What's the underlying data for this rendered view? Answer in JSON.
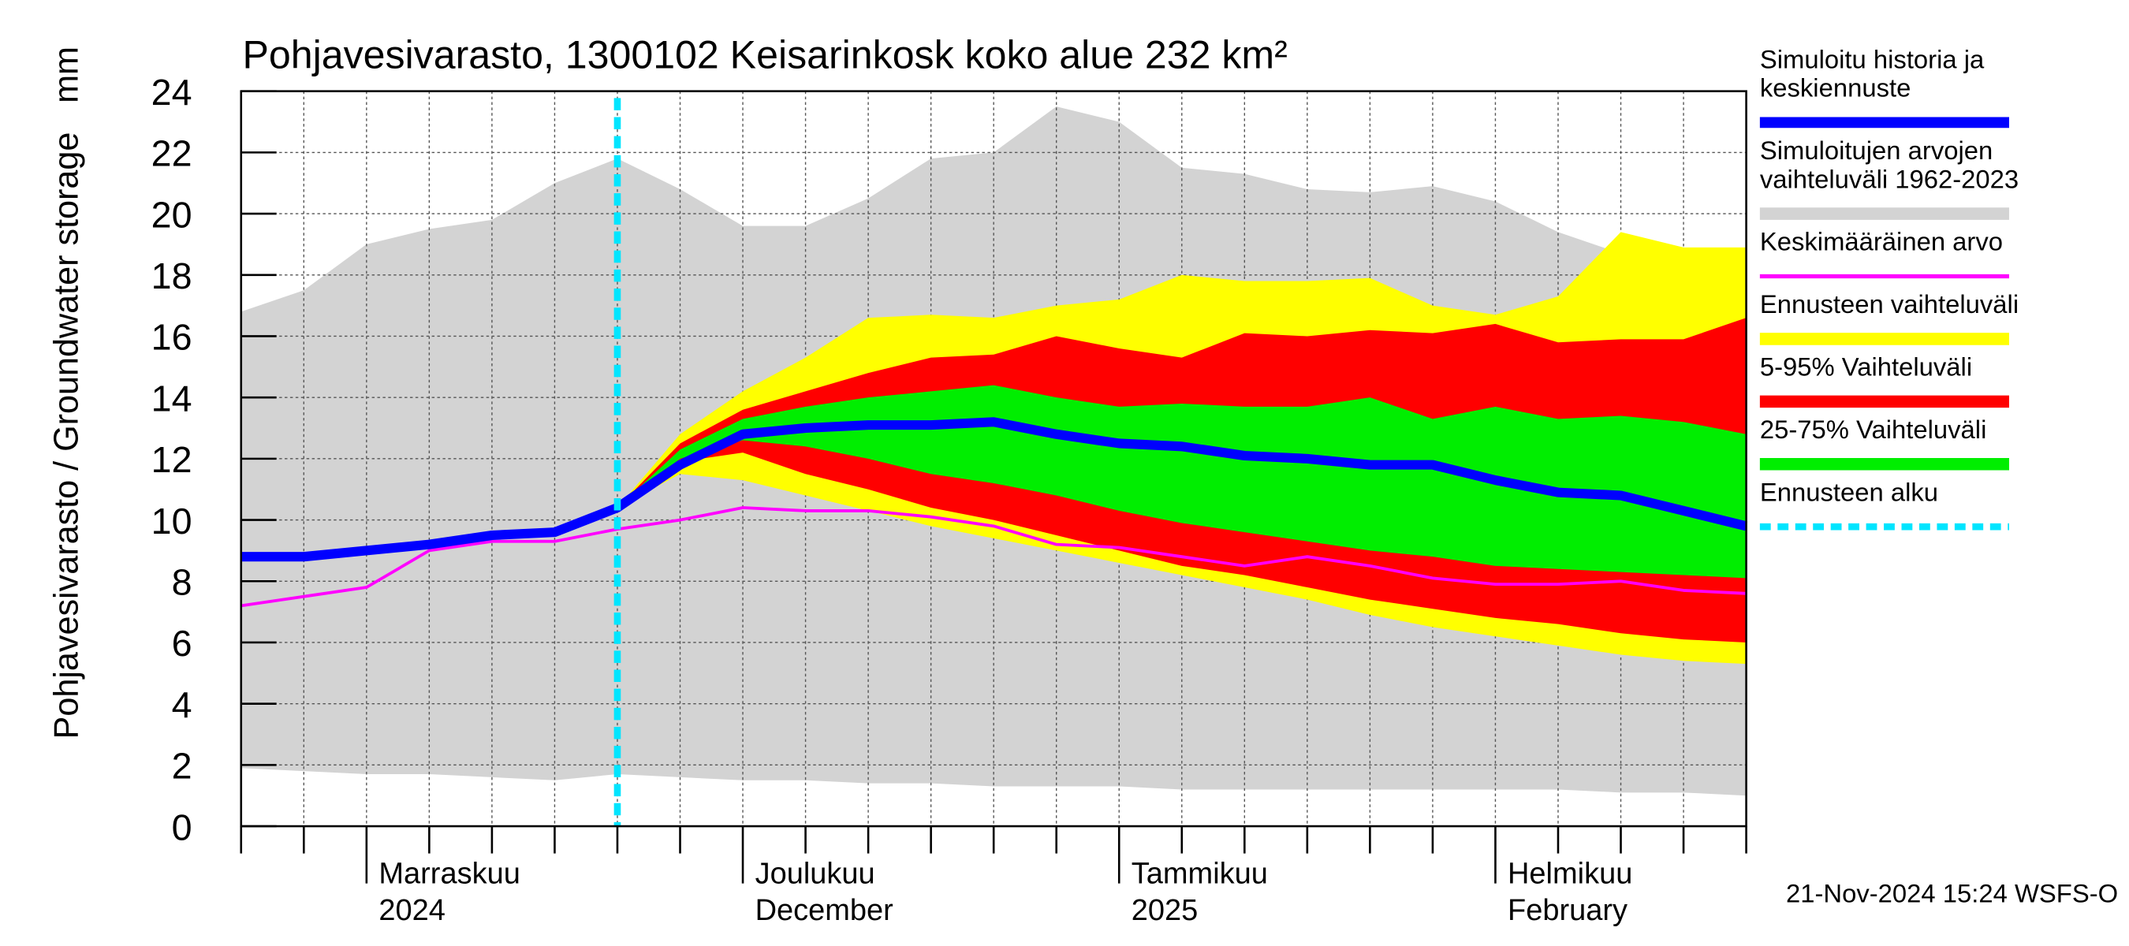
{
  "chart_data": {
    "type": "band-forecast",
    "title": "Pohjavesivarasto, 1300102 Keisarinkosk koko alue 232 km²",
    "y_label": "Pohjavesivarasto / Groundwater storage",
    "y_unit": "mm",
    "footer": "21-Nov-2024 15:24 WSFS-O",
    "categories": [
      null,
      null,
      "Marraskuu\n2024",
      null,
      null,
      null,
      null,
      null,
      "Joulukuu\nDecember",
      null,
      null,
      null,
      null,
      null,
      "Tammikuu\n2025",
      null,
      null,
      null,
      null,
      null,
      "Helmikuu\nFebruary",
      null,
      null,
      null,
      null
    ],
    "ylim": [
      0,
      24
    ],
    "yticks": [
      0,
      2,
      4,
      6,
      8,
      10,
      12,
      14,
      16,
      18,
      20,
      22,
      24
    ],
    "grid": true,
    "series": [
      {
        "name": "Simuloitujen arvojen\nvaihteluväli 1962-2023",
        "color": "#d3d3d3",
        "kind": "band",
        "high": [
          16.8,
          17.5,
          19.0,
          19.5,
          19.8,
          21.0,
          21.8,
          20.8,
          19.6,
          19.6,
          20.5,
          21.8,
          22.0,
          23.5,
          23.0,
          21.5,
          21.3,
          20.8,
          20.7,
          20.9,
          20.4,
          19.4,
          18.7,
          17.5,
          16.8
        ],
        "low": [
          1.9,
          1.8,
          1.7,
          1.7,
          1.6,
          1.5,
          1.7,
          1.6,
          1.5,
          1.5,
          1.4,
          1.4,
          1.3,
          1.3,
          1.3,
          1.2,
          1.2,
          1.2,
          1.2,
          1.2,
          1.2,
          1.2,
          1.1,
          1.1,
          1.0
        ]
      },
      {
        "name": "Ennusteen vaihteluväli",
        "color": "#ffff00",
        "kind": "band",
        "high": [
          null,
          null,
          null,
          null,
          null,
          null,
          10.4,
          12.8,
          14.2,
          15.3,
          16.6,
          16.7,
          16.6,
          17.0,
          17.2,
          18.0,
          17.8,
          17.8,
          17.9,
          17.0,
          16.7,
          17.3,
          19.4,
          18.9,
          18.9
        ],
        "low": [
          null,
          null,
          null,
          null,
          null,
          null,
          10.4,
          11.5,
          11.3,
          10.8,
          10.3,
          9.8,
          9.4,
          9.0,
          8.6,
          8.2,
          7.8,
          7.4,
          6.9,
          6.5,
          6.2,
          5.9,
          5.6,
          5.4,
          5.3
        ]
      },
      {
        "name": "5-95% Vaihteluväli",
        "color": "#ff0000",
        "kind": "band",
        "high": [
          null,
          null,
          null,
          null,
          null,
          null,
          10.4,
          12.5,
          13.6,
          14.2,
          14.8,
          15.3,
          15.4,
          16.0,
          15.6,
          15.3,
          16.1,
          16.0,
          16.2,
          16.1,
          16.4,
          15.8,
          15.9,
          15.9,
          16.6
        ],
        "low": [
          null,
          null,
          null,
          null,
          null,
          null,
          10.4,
          11.9,
          12.2,
          11.5,
          11.0,
          10.4,
          10.0,
          9.5,
          9.0,
          8.5,
          8.2,
          7.8,
          7.4,
          7.1,
          6.8,
          6.6,
          6.3,
          6.1,
          6.0
        ]
      },
      {
        "name": "25-75% Vaihteluväli",
        "color": "#00ee00",
        "kind": "band",
        "high": [
          null,
          null,
          null,
          null,
          null,
          null,
          10.4,
          12.3,
          13.3,
          13.7,
          14.0,
          14.2,
          14.4,
          14.0,
          13.7,
          13.8,
          13.7,
          13.7,
          14.0,
          13.3,
          13.7,
          13.3,
          13.4,
          13.2,
          12.8
        ],
        "low": [
          null,
          null,
          null,
          null,
          null,
          null,
          10.4,
          12.0,
          12.6,
          12.4,
          12.0,
          11.5,
          11.2,
          10.8,
          10.3,
          9.9,
          9.6,
          9.3,
          9.0,
          8.8,
          8.5,
          8.4,
          8.3,
          8.2,
          8.1
        ]
      },
      {
        "name": "Keskimääräinen arvo",
        "color": "#ff00ff",
        "kind": "line",
        "values": [
          7.2,
          7.5,
          7.8,
          9.0,
          9.3,
          9.3,
          9.7,
          10.0,
          10.4,
          10.3,
          10.3,
          10.1,
          9.8,
          9.2,
          9.1,
          8.8,
          8.5,
          8.8,
          8.5,
          8.1,
          7.9,
          7.9,
          8.0,
          7.7,
          7.6
        ]
      },
      {
        "name": "Simuloitu historia ja\nkeskiennuste",
        "color": "#0000ff",
        "kind": "thick-line",
        "values": [
          8.8,
          8.8,
          9.0,
          9.2,
          9.5,
          9.6,
          10.4,
          11.8,
          12.8,
          13.0,
          13.1,
          13.1,
          13.2,
          12.8,
          12.5,
          12.4,
          12.1,
          12.0,
          11.8,
          11.8,
          11.3,
          10.9,
          10.8,
          10.3,
          9.8
        ]
      }
    ],
    "legend_order": [
      5,
      0,
      4,
      1,
      2,
      3
    ],
    "forecast_start": {
      "name": "Ennusteen alku",
      "color": "#00e5ff",
      "index": 6
    }
  }
}
